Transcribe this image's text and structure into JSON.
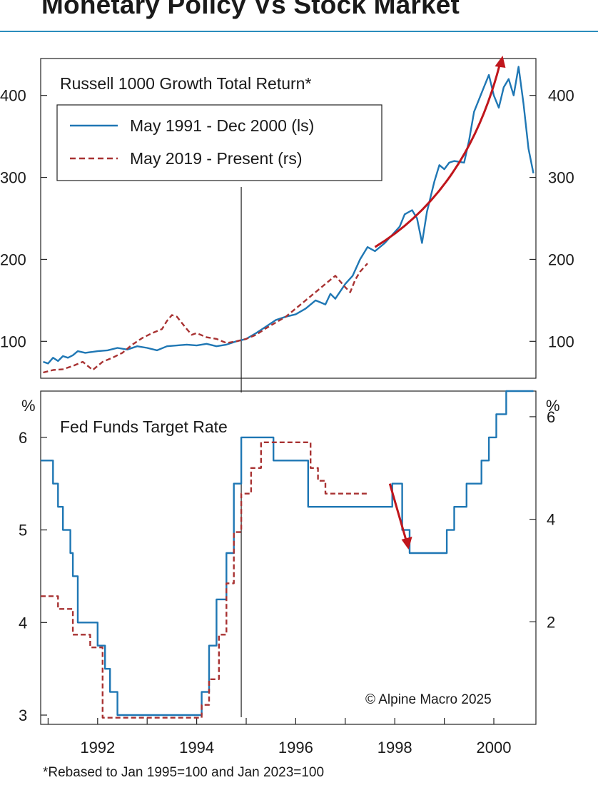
{
  "header": {
    "title": "Monetary Policy Vs Stock Market"
  },
  "footnote": "*Rebased to Jan 1995=100 and Jan 2023=100",
  "copyright": "© Alpine Macro 2025",
  "colors": {
    "series_1991": "#1f77b4",
    "series_2019": "#a83232",
    "arrow": "#c0161c",
    "header_rule": "#2b8dbd"
  },
  "chart_data": [
    {
      "type": "line",
      "title": "Russell 1000 Growth Total Return*",
      "xlabel": "",
      "ylabel": "",
      "x_range": [
        1990.85,
        2000.85
      ],
      "ylim": [
        55,
        445
      ],
      "left_ticks": [
        "100",
        "200",
        "300",
        "400"
      ],
      "right_ticks": [
        "100",
        "200",
        "300",
        "400"
      ],
      "grid": false,
      "legend": "top-left",
      "series": [
        {
          "name": "May 1991 - Dec 2000 (ls)",
          "color": "#1f77b4",
          "style": "solid",
          "x": [
            1990.9,
            1991.0,
            1991.1,
            1991.2,
            1991.3,
            1991.4,
            1991.5,
            1991.6,
            1991.75,
            1992.0,
            1992.2,
            1992.4,
            1992.6,
            1992.8,
            1993.0,
            1993.2,
            1993.4,
            1993.6,
            1993.8,
            1994.0,
            1994.2,
            1994.4,
            1994.6,
            1994.8,
            1995.0,
            1995.2,
            1995.4,
            1995.6,
            1995.8,
            1996.0,
            1996.2,
            1996.4,
            1996.6,
            1996.7,
            1996.8,
            1997.0,
            1997.15,
            1997.3,
            1997.45,
            1997.6,
            1997.8,
            1997.95,
            1998.1,
            1998.2,
            1998.35,
            1998.45,
            1998.55,
            1998.65,
            1998.8,
            1998.9,
            1999.0,
            1999.1,
            1999.2,
            1999.4,
            1999.5,
            1999.6,
            1999.7,
            1999.8,
            1999.9,
            2000.0,
            2000.1,
            2000.2,
            2000.3,
            2000.4,
            2000.5,
            2000.6,
            2000.7,
            2000.8
          ],
          "values": [
            75,
            73,
            80,
            76,
            82,
            80,
            83,
            88,
            86,
            88,
            89,
            92,
            90,
            94,
            92,
            89,
            94,
            95,
            96,
            95,
            97,
            94,
            96,
            100,
            103,
            110,
            118,
            126,
            130,
            133,
            140,
            150,
            145,
            158,
            152,
            170,
            180,
            200,
            215,
            210,
            220,
            230,
            240,
            255,
            260,
            250,
            220,
            258,
            295,
            315,
            310,
            318,
            320,
            318,
            345,
            380,
            395,
            410,
            425,
            400,
            385,
            410,
            420,
            400,
            435,
            390,
            335,
            305
          ],
          "axis": "left"
        },
        {
          "name": "May 2019 - Present (rs)",
          "color": "#a83232",
          "style": "dashed",
          "x": [
            1990.9,
            1991.1,
            1991.3,
            1991.5,
            1991.7,
            1991.9,
            1992.1,
            1992.3,
            1992.5,
            1992.7,
            1992.9,
            1993.1,
            1993.3,
            1993.4,
            1993.5,
            1993.6,
            1993.8,
            1993.9,
            1994.0,
            1994.2,
            1994.4,
            1994.6,
            1994.8,
            1995.0,
            1995.2,
            1995.4,
            1995.6,
            1995.8,
            1996.0,
            1996.2,
            1996.4,
            1996.6,
            1996.8,
            1997.0,
            1997.1,
            1997.2,
            1997.3,
            1997.45
          ],
          "values": [
            62,
            65,
            66,
            70,
            75,
            65,
            75,
            80,
            86,
            96,
            104,
            110,
            115,
            125,
            132,
            130,
            115,
            108,
            110,
            105,
            103,
            98,
            100,
            103,
            108,
            116,
            123,
            130,
            140,
            150,
            160,
            170,
            180,
            166,
            160,
            175,
            185,
            195
          ],
          "axis": "right"
        }
      ],
      "annotations": [
        {
          "type": "arrow",
          "direction": "up",
          "from": [
            1997.6,
            215
          ],
          "to": [
            2000.15,
            445
          ]
        },
        {
          "type": "vertical-line",
          "x": 1994.9
        }
      ]
    },
    {
      "type": "line",
      "title": "Fed Funds Target Rate",
      "x_range": [
        1990.85,
        2000.85
      ],
      "x_ticks": [
        "1992",
        "1994",
        "1996",
        "1998",
        "2000"
      ],
      "x_tick_values": [
        1992,
        1994,
        1996,
        1998,
        2000
      ],
      "left_unit": "%",
      "right_unit": "%",
      "ylim": [
        2.9,
        6.5
      ],
      "left_ticks": [
        "3",
        "4",
        "5",
        "6"
      ],
      "right_ticks": [
        "2",
        "4",
        "6"
      ],
      "right_ylim": [
        0.0,
        6.5
      ],
      "legend": "none",
      "series": [
        {
          "name": "May 1991 - Dec 2000 (ls)",
          "color": "#1f77b4",
          "style": "step",
          "x": [
            1990.85,
            1991.05,
            1991.1,
            1991.2,
            1991.3,
            1991.45,
            1991.5,
            1991.6,
            1991.9,
            1992.0,
            1992.05,
            1992.15,
            1992.25,
            1992.3,
            1992.4,
            1992.45,
            1994.0,
            1994.1,
            1994.25,
            1994.4,
            1994.6,
            1994.75,
            1994.9,
            1995.5,
            1995.55,
            1995.75,
            1996.25,
            1996.4,
            1997.95,
            1998.15,
            1998.3,
            1998.9,
            1999.05,
            1999.2,
            1999.45,
            1999.6,
            1999.75,
            1999.9,
            2000.05,
            2000.25,
            2000.8
          ],
          "values": [
            5.75,
            5.75,
            5.5,
            5.25,
            5.0,
            4.75,
            4.5,
            4.0,
            4.0,
            3.75,
            3.75,
            3.5,
            3.25,
            3.25,
            3.0,
            3.0,
            3.0,
            3.25,
            3.75,
            4.25,
            4.75,
            5.5,
            6.0,
            6.0,
            5.75,
            5.75,
            5.25,
            5.25,
            5.5,
            5.0,
            4.75,
            4.75,
            5.0,
            5.25,
            5.5,
            5.5,
            5.75,
            6.0,
            6.25,
            6.5,
            6.5
          ],
          "axis": "left"
        },
        {
          "name": "May 2019 - Present (rs)",
          "color": "#a83232",
          "style": "dashed-step",
          "x": [
            1990.85,
            1991.05,
            1991.2,
            1991.5,
            1991.6,
            1991.85,
            1992.0,
            1992.1,
            1993.95,
            1994.1,
            1994.25,
            1994.45,
            1994.6,
            1994.75,
            1994.9,
            1995.1,
            1995.3,
            1996.15,
            1996.3,
            1996.45,
            1996.6,
            1997.45
          ],
          "values": [
            2.5,
            2.5,
            2.25,
            1.75,
            1.75,
            1.5,
            1.5,
            0.13,
            0.13,
            0.38,
            0.88,
            1.75,
            2.75,
            3.75,
            4.5,
            5.0,
            5.5,
            5.5,
            5.0,
            4.75,
            4.5,
            4.5
          ],
          "axis": "right"
        }
      ],
      "annotations": [
        {
          "type": "arrow",
          "direction": "down",
          "from": [
            1997.9,
            5.5
          ],
          "to": [
            1998.25,
            4.85
          ]
        },
        {
          "type": "vertical-line",
          "x": 1994.9
        }
      ]
    }
  ]
}
